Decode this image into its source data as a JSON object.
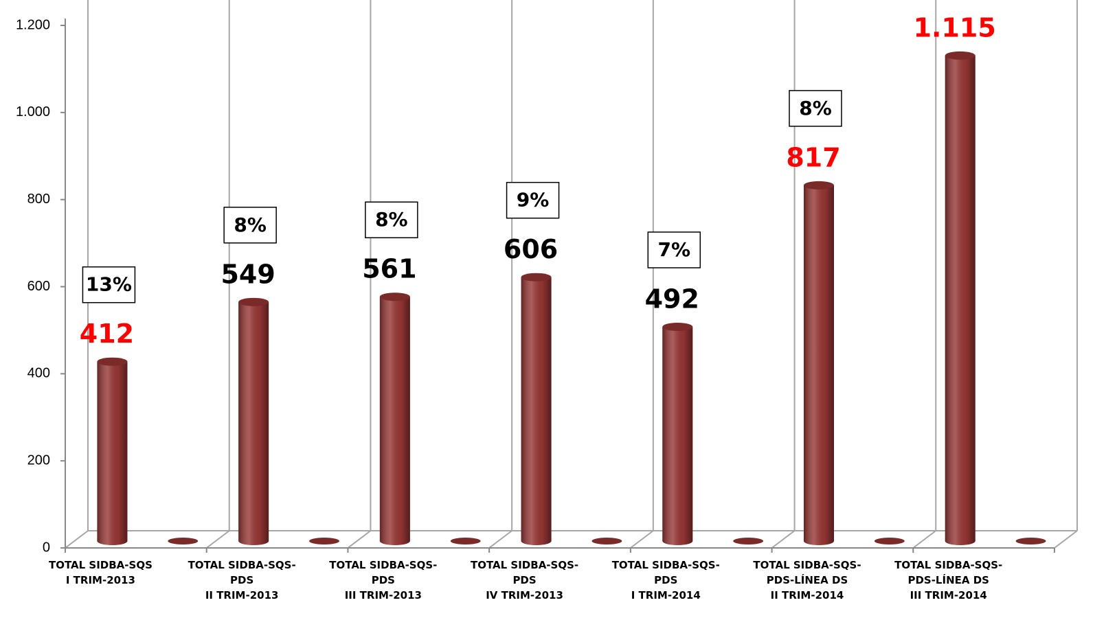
{
  "chart_data": {
    "type": "bar3d",
    "categories": [
      "TOTAL SIDBA-SQS\nI TRIM-2013",
      null,
      "TOTAL SIDBA-SQS-\nPDS\nII TRIM-2013",
      null,
      "TOTAL SIDBA-SQS-\nPDS\nIII TRIM-2013",
      null,
      "TOTAL SIDBA-SQS-\nPDS\nIV TRIM-2013",
      null,
      "TOTAL SIDBA-SQS-\nPDS\nI TRIM-2014",
      null,
      "TOTAL SIDBA-SQS-\nPDS-LÍNEA DS\nII TRIM-2014",
      null,
      "TOTAL SIDBA-SQS-\nPDS-LÍNEA DS\nIII TRIM-2014",
      null
    ],
    "values": [
      412,
      0,
      549,
      0,
      561,
      0,
      606,
      0,
      492,
      0,
      817,
      0,
      1115,
      0
    ],
    "value_labels": [
      "412",
      null,
      "549",
      null,
      "561",
      null,
      "606",
      null,
      "492",
      null,
      "817",
      null,
      "1.115",
      null
    ],
    "value_label_colors": [
      "#ff0000",
      null,
      "#000000",
      null,
      "#000000",
      null,
      "#000000",
      null,
      "#000000",
      null,
      "#ff0000",
      null,
      "#ff0000",
      null
    ],
    "percent_labels": [
      "13%",
      null,
      "8%",
      null,
      "8%",
      null,
      "9%",
      null,
      "7%",
      null,
      "8%",
      null,
      null,
      null
    ],
    "color": "#963634",
    "ylim": [
      0,
      1200
    ],
    "yticks": [
      0,
      200,
      400,
      600,
      800,
      {
        "value": 1000,
        "label": "1.000"
      },
      {
        "value": 1200,
        "label": "1.200"
      }
    ]
  }
}
